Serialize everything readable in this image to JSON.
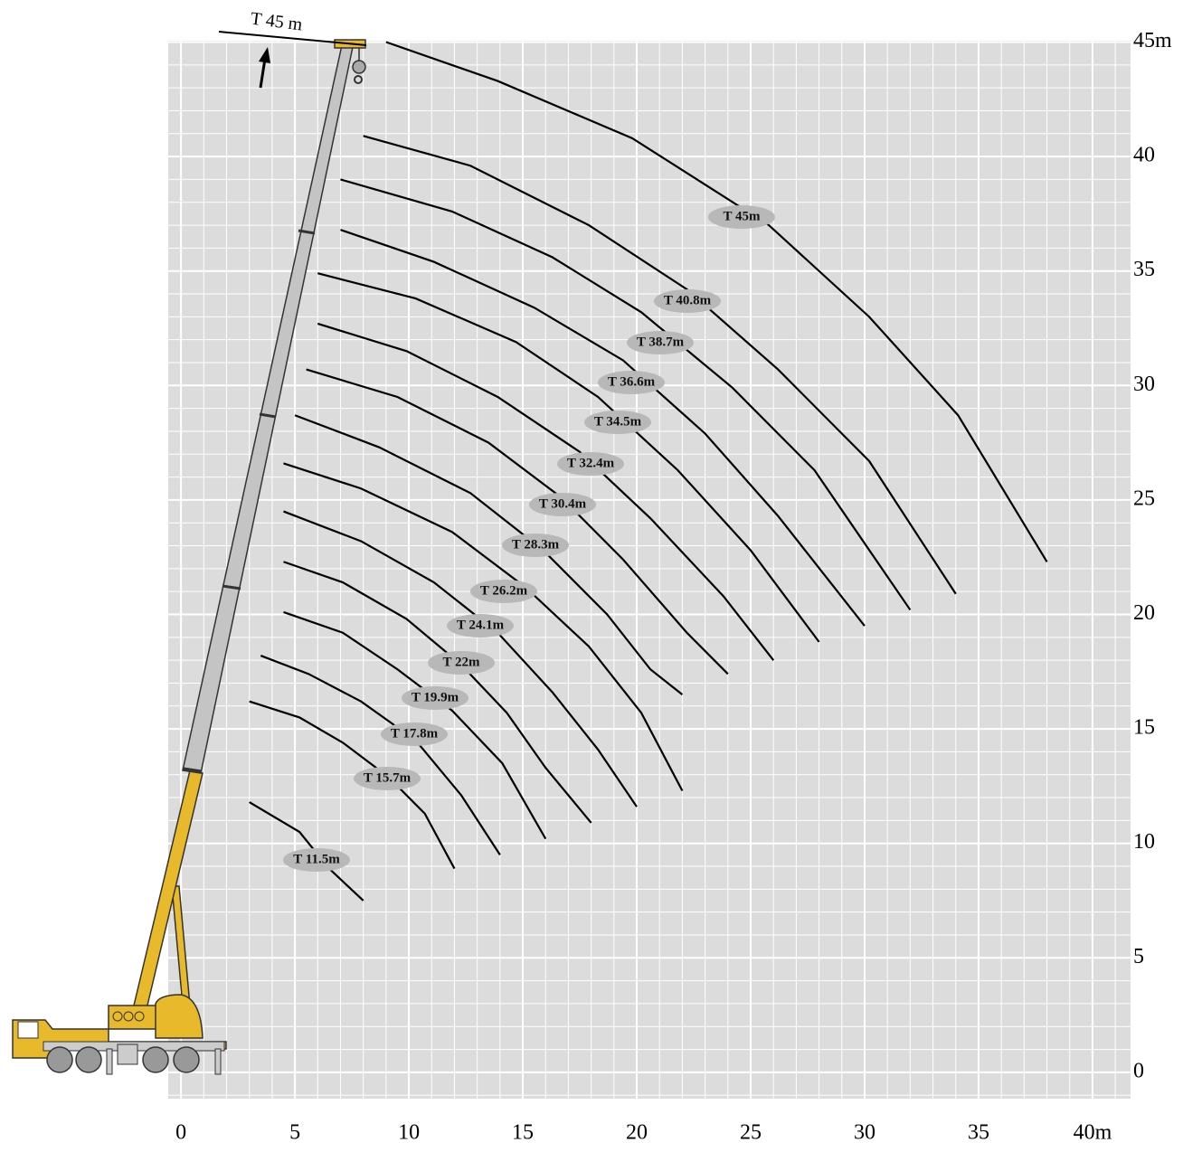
{
  "chart_data": {
    "type": "line",
    "annotation": "T 45 m",
    "xlim": [
      -0.56,
      41.67
    ],
    "ylim": [
      -1.15,
      45.06
    ],
    "xticks": [
      0,
      5,
      10,
      15,
      20,
      25,
      30,
      35,
      {
        "value": 40,
        "label": "40m"
      }
    ],
    "yticks": [
      0,
      5,
      10,
      15,
      20,
      25,
      30,
      35,
      40,
      {
        "value": 45,
        "label": "45m"
      }
    ],
    "grid": true,
    "series": [
      {
        "name": "T 11.5m",
        "color": "#000000",
        "x": [
          3.0,
          5.2,
          6.5,
          8.0
        ],
        "values": [
          11.8,
          10.5,
          8.9,
          7.5
        ]
      },
      {
        "name": "T 15.7m",
        "color": "#000000",
        "x": [
          3.0,
          5.2,
          7.1,
          9.1,
          10.7,
          12.0
        ],
        "values": [
          16.2,
          15.5,
          14.4,
          12.9,
          11.3,
          8.9
        ]
      },
      {
        "name": "T 17.8m",
        "color": "#000000",
        "x": [
          3.5,
          5.6,
          7.9,
          10.3,
          12.3,
          14.0
        ],
        "values": [
          18.2,
          17.4,
          16.2,
          14.5,
          12.1,
          9.5
        ]
      },
      {
        "name": "T 19.9m",
        "color": "#000000",
        "x": [
          4.5,
          7.1,
          9.5,
          11.9,
          14.1,
          16.0
        ],
        "values": [
          20.1,
          19.2,
          17.6,
          15.8,
          13.5,
          10.2
        ]
      },
      {
        "name": "T 22m",
        "color": "#000000",
        "x": [
          4.5,
          7.1,
          9.9,
          12.3,
          14.3,
          16.0,
          18.0
        ],
        "values": [
          22.3,
          21.4,
          19.8,
          17.8,
          15.7,
          13.3,
          10.9
        ]
      },
      {
        "name": "T 24.1m",
        "color": "#000000",
        "x": [
          4.5,
          7.9,
          11.1,
          13.9,
          16.3,
          18.3,
          20.0
        ],
        "values": [
          24.5,
          23.2,
          21.4,
          19.2,
          16.6,
          14.1,
          11.6
        ]
      },
      {
        "name": "T 26.2m",
        "color": "#000000",
        "x": [
          4.5,
          7.9,
          11.9,
          15.1,
          17.9,
          20.2,
          22.0
        ],
        "values": [
          26.6,
          25.5,
          23.6,
          21.2,
          18.6,
          15.7,
          12.3
        ]
      },
      {
        "name": "T 28.3m",
        "color": "#000000",
        "x": [
          5.0,
          8.7,
          12.7,
          15.9,
          18.7,
          20.6,
          22.0
        ],
        "values": [
          28.7,
          27.3,
          25.3,
          22.8,
          20.0,
          17.6,
          16.5
        ]
      },
      {
        "name": "T 30.4m",
        "color": "#000000",
        "x": [
          5.5,
          9.5,
          13.5,
          16.7,
          19.4,
          22.2,
          24.0
        ],
        "values": [
          30.7,
          29.5,
          27.5,
          25.1,
          22.4,
          19.2,
          17.4
        ]
      },
      {
        "name": "T 32.4m",
        "color": "#000000",
        "x": [
          6.0,
          9.9,
          13.9,
          17.5,
          20.6,
          23.8,
          26.0
        ],
        "values": [
          32.7,
          31.5,
          29.5,
          27.1,
          24.2,
          20.8,
          18.0
        ]
      },
      {
        "name": "T 34.5m",
        "color": "#000000",
        "x": [
          6.0,
          10.3,
          14.7,
          18.3,
          21.8,
          25.0,
          28.0
        ],
        "values": [
          34.9,
          33.8,
          31.9,
          29.5,
          26.3,
          22.8,
          18.8
        ]
      },
      {
        "name": "T 36.6m",
        "color": "#000000",
        "x": [
          7.0,
          11.1,
          15.5,
          19.4,
          23.0,
          26.2,
          30.0
        ],
        "values": [
          36.8,
          35.4,
          33.4,
          31.1,
          27.9,
          24.3,
          19.5
        ]
      },
      {
        "name": "T 38.7m",
        "color": "#000000",
        "x": [
          7.0,
          11.9,
          16.3,
          20.2,
          24.2,
          27.8,
          32.0
        ],
        "values": [
          39.0,
          37.6,
          35.6,
          33.2,
          29.9,
          26.3,
          20.2
        ]
      },
      {
        "name": "T 40.8m",
        "color": "#000000",
        "x": [
          8.0,
          12.7,
          17.9,
          22.2,
          26.2,
          30.2,
          34.0
        ],
        "values": [
          40.9,
          39.6,
          37.0,
          34.2,
          30.7,
          26.7,
          20.9
        ]
      },
      {
        "name": "T 45m",
        "color": "#000000",
        "x": [
          9.0,
          13.9,
          19.8,
          25.8,
          30.2,
          34.1,
          38.0
        ],
        "values": [
          45.0,
          43.3,
          40.8,
          37.0,
          33.0,
          28.7,
          22.3
        ]
      }
    ]
  }
}
